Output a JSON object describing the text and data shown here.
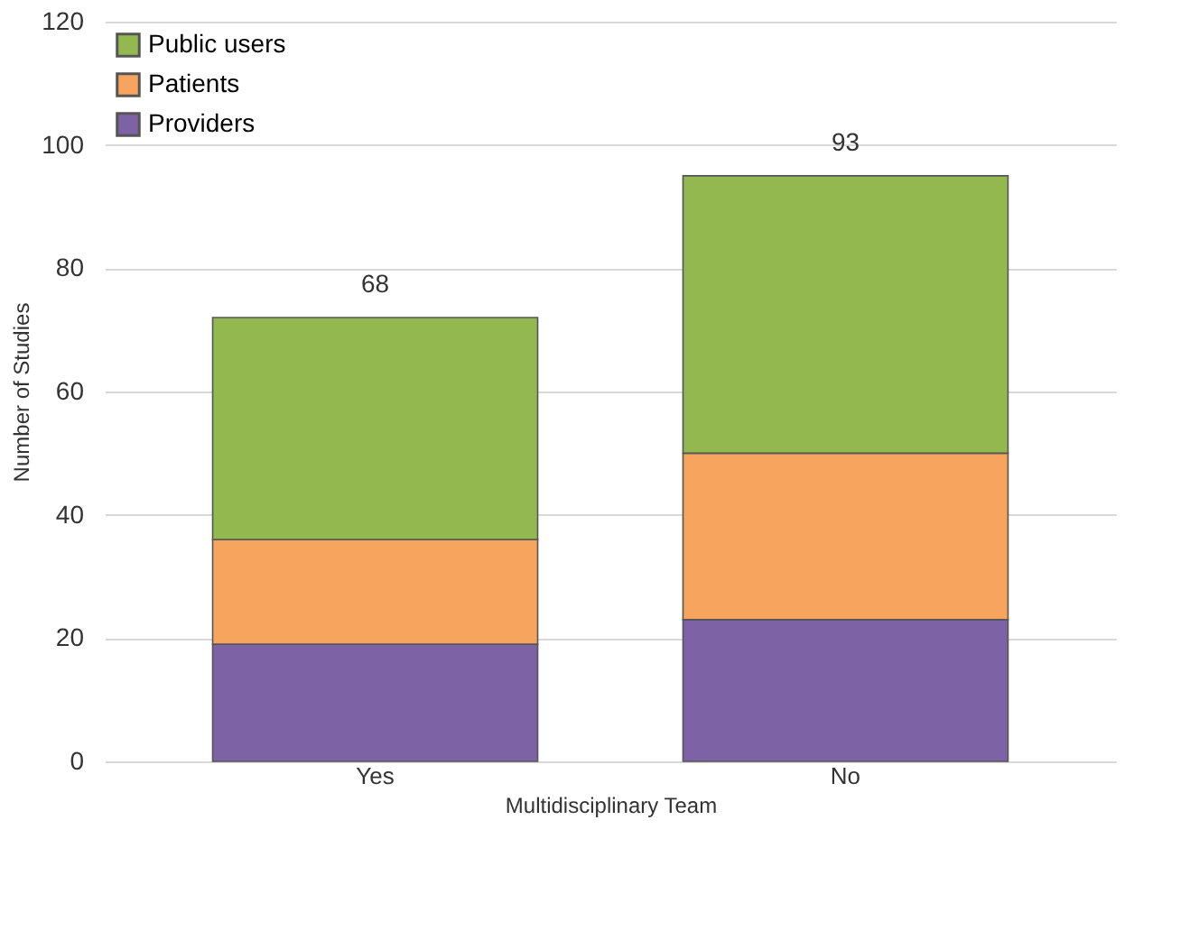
{
  "chart_data": {
    "type": "bar",
    "stacked": true,
    "xlabel": "Multidisciplinary Team",
    "ylabel": "Number of Studies",
    "categories": [
      "Yes",
      "No"
    ],
    "series": [
      {
        "name": "Providers",
        "color": "#7e62a6",
        "values": [
          19,
          23
        ]
      },
      {
        "name": "Patients",
        "color": "#f7a55e",
        "values": [
          17,
          27
        ]
      },
      {
        "name": "Public users",
        "color": "#93b850",
        "values": [
          36,
          45
        ]
      }
    ],
    "annotations": [
      {
        "text": "68",
        "x": "Yes",
        "y": 72
      },
      {
        "text": "93",
        "x": "No",
        "y": 95
      }
    ],
    "ylim": [
      0,
      120
    ],
    "yticks": [
      0,
      20,
      40,
      60,
      80,
      100,
      120
    ],
    "grid": "y",
    "legend": "top left"
  }
}
